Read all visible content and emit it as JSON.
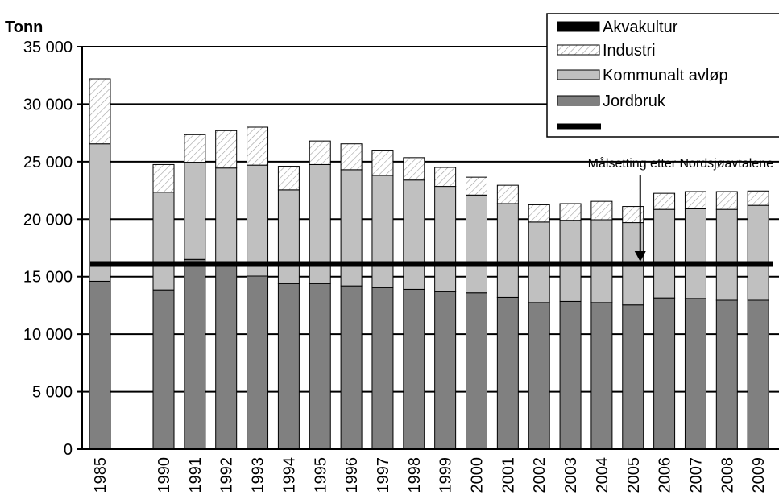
{
  "chart_data": {
    "type": "bar",
    "stacked": true,
    "ylabel": "Tonn",
    "ylim": [
      0,
      35000
    ],
    "yticks": [
      "0",
      "5 000",
      "10 000",
      "15 000",
      "20 000",
      "25 000",
      "30 000",
      "35 000"
    ],
    "grid": "horizontal",
    "categories": [
      "1985",
      "1990",
      "1991",
      "1992",
      "1993",
      "1994",
      "1995",
      "1996",
      "1997",
      "1998",
      "1999",
      "2000",
      "2001",
      "2002",
      "2003",
      "2004",
      "2005",
      "2006",
      "2007",
      "2008",
      "2009"
    ],
    "series": [
      {
        "name": "Jordbruk",
        "color": "#808080",
        "values": [
          14600,
          13850,
          16500,
          15950,
          15050,
          14400,
          14400,
          14200,
          14050,
          13900,
          13700,
          13600,
          13200,
          12750,
          12850,
          12750,
          12550,
          13150,
          13100,
          12950,
          12950
        ]
      },
      {
        "name": "Kommunalt avløp",
        "color": "#c0c0c0",
        "values": [
          11950,
          8500,
          8450,
          8500,
          9650,
          8150,
          10350,
          10100,
          9750,
          9500,
          9150,
          8500,
          8150,
          7000,
          7050,
          7200,
          7150,
          7700,
          7800,
          7900,
          8250
        ]
      },
      {
        "name": "Industri",
        "color": "#ffffff",
        "pattern": "diagonal-hatch",
        "values": [
          5650,
          2400,
          2400,
          3250,
          3300,
          2050,
          2050,
          2250,
          2200,
          1950,
          1650,
          1550,
          1600,
          1500,
          1450,
          1600,
          1400,
          1400,
          1500,
          1550,
          1250
        ]
      },
      {
        "name": "Akvakultur",
        "color": "#000000",
        "values": [
          0,
          0,
          0,
          0,
          0,
          0,
          0,
          0,
          0,
          0,
          0,
          0,
          0,
          0,
          0,
          0,
          0,
          0,
          0,
          0,
          0
        ]
      }
    ],
    "target_line": {
      "value": 16100,
      "color": "#000000"
    },
    "annotation": {
      "text": "Målsetting etter Nordsjøavtalene",
      "points_to": "2005"
    },
    "legend": {
      "placement": "top-right",
      "entries": [
        "Akvakultur",
        "Industri",
        "Kommunalt avløp",
        "Jordbruk",
        ""
      ]
    }
  }
}
